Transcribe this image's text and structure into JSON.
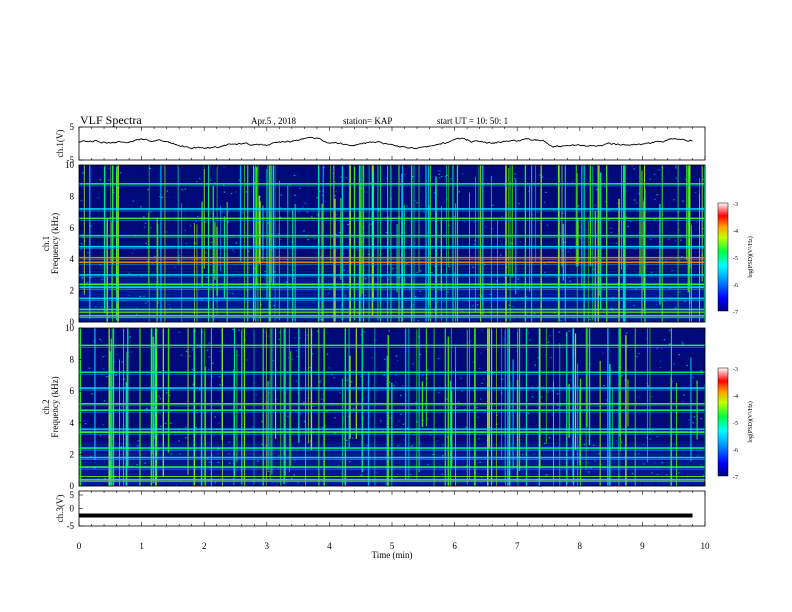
{
  "header": {
    "title": "VLF Spectra",
    "date": "Apr.5 , 2018",
    "station": "station= KAP",
    "start": "start UT = 10: 50: 1"
  },
  "colors": {
    "waveform": "#000000",
    "background_spectrogram": "#0a0a28",
    "colormap": [
      "#000080",
      "#0000ff",
      "#00a0ff",
      "#00ffff",
      "#00ff80",
      "#80ff00",
      "#ffff00",
      "#ff8000",
      "#ff0000",
      "#ffffff"
    ]
  },
  "chart_data": [
    {
      "type": "line",
      "panel": "ch1-waveform",
      "ylabel": "ch.1(V)",
      "ylim": [
        -5,
        5
      ],
      "yticks": [
        "5",
        "-5"
      ],
      "xlim": [
        0,
        10
      ],
      "description_series": "noisy waveform oscillating near 0 V"
    },
    {
      "type": "heatmap",
      "panel": "ch1-spectrogram",
      "ylabel": "ch.1",
      "ylabel2": "Frequency (kHz)",
      "ylim": [
        0,
        10
      ],
      "yticks": [
        "0",
        "2",
        "4",
        "6",
        "8",
        "10"
      ],
      "xlim": [
        0,
        10
      ],
      "colorbar": {
        "label": "log(PSD)(V²/Hz)",
        "range": [
          -7,
          -3
        ],
        "ticks": [
          "-3",
          "-4",
          "-5",
          "-6",
          "-7"
        ]
      },
      "bands_khz": [
        0.4,
        0.8,
        1.5,
        2.2,
        2.4,
        3.0,
        3.8,
        4.1,
        4.8,
        5.5,
        6.6,
        7.2,
        8.8
      ]
    },
    {
      "type": "heatmap",
      "panel": "ch2-spectrogram",
      "ylabel": "ch.2",
      "ylabel2": "Frequency (kHz)",
      "ylim": [
        0,
        10
      ],
      "yticks": [
        "0",
        "2",
        "4",
        "6",
        "8",
        "10"
      ],
      "xlim": [
        0,
        10
      ],
      "colorbar": {
        "label": "log(PSD)(V²/Hz)",
        "range": [
          -7,
          -3
        ],
        "ticks": [
          "-3",
          "-4",
          "-5",
          "-6",
          "-7"
        ]
      },
      "bands_khz": [
        0.4,
        1.2,
        1.8,
        2.4,
        3.4,
        3.6,
        4.8,
        5.2,
        6.2,
        7.2,
        8.9
      ]
    },
    {
      "type": "line",
      "panel": "ch3-waveform",
      "ylabel": "ch.3(V)",
      "ylim": [
        -5,
        5
      ],
      "yticks": [
        "5",
        "0",
        "-5"
      ],
      "xlim": [
        0,
        10
      ],
      "constant_value": -2
    }
  ],
  "xaxis": {
    "label": "Time (min)",
    "ticks": [
      "0",
      "1",
      "2",
      "3",
      "4",
      "5",
      "6",
      "7",
      "8",
      "9",
      "10"
    ]
  }
}
